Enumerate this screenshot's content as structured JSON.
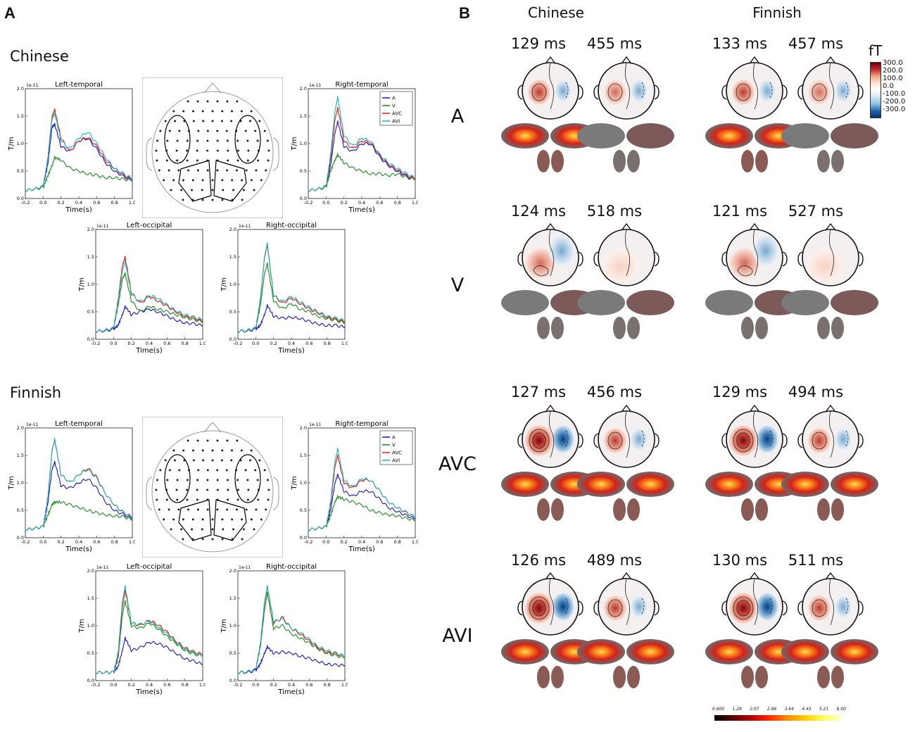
{
  "panel_a": {
    "letter": "A",
    "groups": [
      {
        "title": "Chinese"
      },
      {
        "title": "Finnish"
      }
    ]
  },
  "panel_b": {
    "letter": "B",
    "columns": [
      "Chinese",
      "Finnish"
    ],
    "conditions": [
      "A",
      "V",
      "AVC",
      "AVI"
    ],
    "latencies": [
      [
        "129 ms",
        "455 ms",
        "133 ms",
        "457 ms"
      ],
      [
        "124 ms",
        "518 ms",
        "121 ms",
        "527 ms"
      ],
      [
        "127 ms",
        "456 ms",
        "129 ms",
        "494 ms"
      ],
      [
        "126 ms",
        "489 ms",
        "130 ms",
        "511 ms"
      ]
    ],
    "colorbar": {
      "unit": "fT",
      "labels": [
        "300.0",
        "200.0",
        "100.0",
        "0.0",
        "-100.0",
        "-200.0",
        "-300.0"
      ],
      "bottom_labels": [
        "0.600",
        "1.29",
        "2.07",
        "2.86",
        "3.64",
        "4.43",
        "5.21",
        "6.00"
      ]
    }
  },
  "chart_data": [
    {
      "type": "line",
      "group": "Chinese",
      "title": "Left-temporal",
      "xlabel": "Time(s)",
      "ylabel": "T/m",
      "scale_label": "1e-11",
      "xlim": [
        -0.2,
        1.0
      ],
      "ylim": [
        0.0,
        2.0
      ],
      "xticks": [
        "-0.2",
        "0.0",
        "0.2",
        "0.4",
        "0.6",
        "0.8",
        "1.0"
      ],
      "yticks": [
        "0.0",
        "0.5",
        "1.0",
        "1.5",
        "2.0"
      ],
      "x": [
        -0.2,
        -0.1,
        0.0,
        0.05,
        0.1,
        0.13,
        0.2,
        0.3,
        0.4,
        0.5,
        0.6,
        0.7,
        0.8,
        0.9,
        1.0
      ],
      "series": [
        {
          "name": "A",
          "color": "#1515c8",
          "values": [
            0.15,
            0.17,
            0.22,
            0.6,
            1.3,
            1.35,
            0.95,
            0.85,
            1.05,
            1.1,
            0.9,
            0.65,
            0.5,
            0.4,
            0.33
          ]
        },
        {
          "name": "V",
          "color": "#1a8a1a",
          "values": [
            0.15,
            0.17,
            0.2,
            0.4,
            0.6,
            0.75,
            0.7,
            0.55,
            0.5,
            0.45,
            0.42,
            0.38,
            0.38,
            0.35,
            0.33
          ]
        },
        {
          "name": "AVC",
          "color": "#e01a1a",
          "values": [
            0.15,
            0.17,
            0.22,
            0.7,
            1.5,
            1.62,
            1.1,
            0.85,
            1.05,
            1.12,
            0.95,
            0.7,
            0.55,
            0.42,
            0.35
          ]
        },
        {
          "name": "AVI",
          "color": "#1ab8b8",
          "values": [
            0.15,
            0.17,
            0.22,
            0.7,
            1.45,
            1.55,
            1.05,
            0.9,
            1.1,
            1.22,
            1.0,
            0.75,
            0.55,
            0.45,
            0.36
          ]
        }
      ]
    },
    {
      "type": "line",
      "group": "Chinese",
      "title": "Right-temporal",
      "xlabel": "Time(s)",
      "ylabel": "T/m",
      "scale_label": "1e-11",
      "legend": "top-right",
      "xlim": [
        -0.2,
        1.0
      ],
      "ylim": [
        0.0,
        2.0
      ],
      "xticks": [
        "-0.2",
        "0.0",
        "0.2",
        "0.4",
        "0.6",
        "0.8",
        "1.0"
      ],
      "yticks": [
        "0.0",
        "0.5",
        "1.0",
        "1.5",
        "2.0"
      ],
      "x": [
        -0.2,
        -0.1,
        0.0,
        0.05,
        0.1,
        0.13,
        0.2,
        0.3,
        0.4,
        0.5,
        0.6,
        0.7,
        0.8,
        0.9,
        1.0
      ],
      "series": [
        {
          "name": "A",
          "color": "#1515c8",
          "values": [
            0.15,
            0.17,
            0.22,
            0.6,
            1.2,
            1.4,
            0.95,
            0.85,
            1.0,
            1.0,
            0.75,
            0.6,
            0.5,
            0.4,
            0.35
          ]
        },
        {
          "name": "V",
          "color": "#1a8a1a",
          "values": [
            0.15,
            0.17,
            0.2,
            0.5,
            0.7,
            0.8,
            0.65,
            0.55,
            0.5,
            0.45,
            0.45,
            0.42,
            0.45,
            0.38,
            0.35
          ]
        },
        {
          "name": "AVC",
          "color": "#e01a1a",
          "values": [
            0.15,
            0.17,
            0.22,
            0.7,
            1.45,
            1.65,
            1.05,
            0.9,
            1.05,
            1.02,
            0.78,
            0.62,
            0.52,
            0.42,
            0.36
          ]
        },
        {
          "name": "AVI",
          "color": "#1ab8b8",
          "values": [
            0.15,
            0.17,
            0.22,
            0.8,
            1.6,
            1.85,
            1.15,
            0.95,
            1.1,
            1.05,
            0.8,
            0.65,
            0.55,
            0.45,
            0.38
          ]
        }
      ]
    },
    {
      "type": "line",
      "group": "Chinese",
      "title": "Left-occipital",
      "xlabel": "Time(s)",
      "ylabel": "T/m",
      "scale_label": "1e-11",
      "xlim": [
        -0.2,
        1.0
      ],
      "ylim": [
        0.0,
        2.0
      ],
      "xticks": [
        "-0.2",
        "0.0",
        "0.2",
        "0.4",
        "0.6",
        "0.8",
        "1.0"
      ],
      "yticks": [
        "0.0",
        "0.5",
        "1.0",
        "1.5",
        "2.0"
      ],
      "x": [
        -0.2,
        -0.1,
        0.0,
        0.05,
        0.1,
        0.13,
        0.2,
        0.3,
        0.4,
        0.5,
        0.6,
        0.7,
        0.8,
        0.9,
        1.0
      ],
      "series": [
        {
          "name": "A",
          "color": "#1515c8",
          "values": [
            0.15,
            0.15,
            0.18,
            0.25,
            0.45,
            0.6,
            0.45,
            0.5,
            0.55,
            0.5,
            0.42,
            0.35,
            0.3,
            0.28,
            0.25
          ]
        },
        {
          "name": "V",
          "color": "#1a8a1a",
          "values": [
            0.15,
            0.16,
            0.2,
            0.6,
            1.1,
            1.2,
            0.7,
            0.5,
            0.6,
            0.55,
            0.5,
            0.45,
            0.4,
            0.35,
            0.32
          ]
        },
        {
          "name": "AVC",
          "color": "#e01a1a",
          "values": [
            0.15,
            0.16,
            0.2,
            0.7,
            1.35,
            1.5,
            0.85,
            0.65,
            0.78,
            0.7,
            0.6,
            0.5,
            0.42,
            0.38,
            0.33
          ]
        },
        {
          "name": "AVI",
          "color": "#1ab8b8",
          "values": [
            0.15,
            0.16,
            0.2,
            0.65,
            1.25,
            1.42,
            0.82,
            0.68,
            0.8,
            0.75,
            0.62,
            0.52,
            0.45,
            0.4,
            0.36
          ]
        }
      ]
    },
    {
      "type": "line",
      "group": "Chinese",
      "title": "Right-occipital",
      "xlabel": "Time(s)",
      "ylabel": "T/m",
      "scale_label": "1e-11",
      "xlim": [
        -0.2,
        1.0
      ],
      "ylim": [
        0.0,
        2.0
      ],
      "xticks": [
        "-0.2",
        "0.0",
        "0.2",
        "0.4",
        "0.6",
        "0.8",
        "1.0"
      ],
      "yticks": [
        "0.0",
        "0.5",
        "1.0",
        "1.5",
        "2.0"
      ],
      "x": [
        -0.2,
        -0.1,
        0.0,
        0.05,
        0.1,
        0.13,
        0.2,
        0.3,
        0.4,
        0.5,
        0.6,
        0.7,
        0.8,
        0.9,
        1.0
      ],
      "series": [
        {
          "name": "A",
          "color": "#1515c8",
          "values": [
            0.15,
            0.15,
            0.18,
            0.25,
            0.45,
            0.62,
            0.42,
            0.38,
            0.4,
            0.38,
            0.32,
            0.28,
            0.25,
            0.25,
            0.22
          ]
        },
        {
          "name": "V",
          "color": "#1a8a1a",
          "values": [
            0.15,
            0.16,
            0.2,
            0.6,
            1.2,
            1.38,
            0.7,
            0.55,
            0.65,
            0.55,
            0.5,
            0.42,
            0.38,
            0.34,
            0.3
          ]
        },
        {
          "name": "AVC",
          "color": "#e01a1a",
          "values": [
            0.15,
            0.16,
            0.2,
            0.7,
            1.5,
            1.72,
            0.8,
            0.65,
            0.75,
            0.65,
            0.55,
            0.48,
            0.4,
            0.36,
            0.32
          ]
        },
        {
          "name": "AVI",
          "color": "#1ab8b8",
          "values": [
            0.15,
            0.16,
            0.2,
            0.72,
            1.52,
            1.75,
            0.8,
            0.68,
            0.78,
            0.68,
            0.58,
            0.5,
            0.42,
            0.38,
            0.34
          ]
        }
      ]
    },
    {
      "type": "line",
      "group": "Finnish",
      "title": "Left-temporal",
      "xlabel": "Time(s)",
      "ylabel": "T/m",
      "scale_label": "1e-11",
      "xlim": [
        -0.2,
        1.0
      ],
      "ylim": [
        0.0,
        2.0
      ],
      "xticks": [
        "-0.2",
        "0.0",
        "0.2",
        "0.4",
        "0.6",
        "0.8",
        "1.0"
      ],
      "yticks": [
        "0.0",
        "0.5",
        "1.0",
        "1.5",
        "2.0"
      ],
      "x": [
        -0.2,
        -0.1,
        0.0,
        0.05,
        0.1,
        0.13,
        0.2,
        0.3,
        0.4,
        0.5,
        0.6,
        0.7,
        0.8,
        0.9,
        1.0
      ],
      "series": [
        {
          "name": "A",
          "color": "#1515c8",
          "values": [
            0.15,
            0.17,
            0.2,
            0.6,
            1.25,
            1.38,
            0.95,
            0.9,
            1.0,
            1.08,
            0.9,
            0.65,
            0.5,
            0.42,
            0.35
          ]
        },
        {
          "name": "V",
          "color": "#1a8a1a",
          "values": [
            0.15,
            0.17,
            0.2,
            0.4,
            0.6,
            0.65,
            0.65,
            0.6,
            0.55,
            0.5,
            0.45,
            0.42,
            0.4,
            0.38,
            0.33
          ]
        },
        {
          "name": "AVC",
          "color": "#e01a1a",
          "values": [
            0.15,
            0.17,
            0.2,
            0.7,
            1.6,
            1.78,
            1.15,
            1.0,
            1.15,
            1.27,
            1.1,
            0.8,
            0.6,
            0.45,
            0.38
          ]
        },
        {
          "name": "AVI",
          "color": "#1ab8b8",
          "values": [
            0.15,
            0.17,
            0.2,
            0.7,
            1.58,
            1.8,
            1.15,
            1.0,
            1.15,
            1.25,
            1.08,
            0.8,
            0.6,
            0.46,
            0.36
          ]
        }
      ]
    },
    {
      "type": "line",
      "group": "Finnish",
      "title": "Right-temporal",
      "xlabel": "Time(s)",
      "ylabel": "T/m",
      "scale_label": "1e-11",
      "legend": "top-right",
      "xlim": [
        -0.2,
        1.0
      ],
      "ylim": [
        0.0,
        2.0
      ],
      "xticks": [
        "-0.2",
        "0.0",
        "0.2",
        "0.4",
        "0.6",
        "0.8",
        "1.0"
      ],
      "yticks": [
        "0.0",
        "0.5",
        "1.0",
        "1.5",
        "2.0"
      ],
      "x": [
        -0.2,
        -0.1,
        0.0,
        0.05,
        0.1,
        0.13,
        0.2,
        0.3,
        0.4,
        0.5,
        0.6,
        0.7,
        0.8,
        0.9,
        1.0
      ],
      "series": [
        {
          "name": "A",
          "color": "#1515c8",
          "values": [
            0.15,
            0.17,
            0.2,
            0.5,
            1.0,
            1.15,
            0.85,
            0.75,
            0.85,
            0.85,
            0.7,
            0.55,
            0.48,
            0.4,
            0.35
          ]
        },
        {
          "name": "V",
          "color": "#1a8a1a",
          "values": [
            0.15,
            0.17,
            0.2,
            0.4,
            0.65,
            0.75,
            0.7,
            0.65,
            0.6,
            0.5,
            0.45,
            0.42,
            0.4,
            0.35,
            0.32
          ]
        },
        {
          "name": "AVC",
          "color": "#e01a1a",
          "values": [
            0.15,
            0.17,
            0.2,
            0.6,
            1.3,
            1.5,
            1.0,
            0.9,
            1.05,
            1.05,
            0.85,
            0.65,
            0.55,
            0.45,
            0.38
          ]
        },
        {
          "name": "AVI",
          "color": "#1ab8b8",
          "values": [
            0.15,
            0.17,
            0.2,
            0.65,
            1.4,
            1.62,
            1.05,
            0.92,
            1.08,
            1.05,
            0.85,
            0.65,
            0.55,
            0.46,
            0.38
          ]
        }
      ]
    },
    {
      "type": "line",
      "group": "Finnish",
      "title": "Left-occipital",
      "xlabel": "Time(s)",
      "ylabel": "T/m",
      "scale_label": "1e-11",
      "xlim": [
        -0.2,
        1.0
      ],
      "ylim": [
        0.0,
        2.0
      ],
      "xticks": [
        "-0.2",
        "0.0",
        "0.2",
        "0.4",
        "0.6",
        "0.8",
        "1.0"
      ],
      "yticks": [
        "0.0",
        "0.5",
        "1.0",
        "1.5",
        "2.0"
      ],
      "x": [
        -0.2,
        -0.1,
        0.0,
        0.05,
        0.1,
        0.13,
        0.2,
        0.3,
        0.4,
        0.5,
        0.6,
        0.7,
        0.8,
        0.9,
        1.0
      ],
      "series": [
        {
          "name": "A",
          "color": "#1515c8",
          "values": [
            0.15,
            0.15,
            0.15,
            0.25,
            0.55,
            0.78,
            0.55,
            0.6,
            0.7,
            0.68,
            0.6,
            0.5,
            0.4,
            0.35,
            0.3
          ]
        },
        {
          "name": "V",
          "color": "#1a8a1a",
          "values": [
            0.15,
            0.15,
            0.15,
            0.4,
            1.2,
            1.45,
            1.0,
            0.95,
            1.05,
            0.95,
            0.8,
            0.68,
            0.55,
            0.48,
            0.45
          ]
        },
        {
          "name": "AVC",
          "color": "#e01a1a",
          "values": [
            0.15,
            0.15,
            0.15,
            0.45,
            1.35,
            1.65,
            1.05,
            1.0,
            1.1,
            1.02,
            0.88,
            0.72,
            0.6,
            0.52,
            0.48
          ]
        },
        {
          "name": "AVI",
          "color": "#1ab8b8",
          "values": [
            0.15,
            0.15,
            0.15,
            0.5,
            1.45,
            1.72,
            1.05,
            1.02,
            1.08,
            0.98,
            0.85,
            0.7,
            0.58,
            0.5,
            0.45
          ]
        }
      ]
    },
    {
      "type": "line",
      "group": "Finnish",
      "title": "Right-occipital",
      "xlabel": "Time(s)",
      "ylabel": "T/m",
      "scale_label": "1e-11",
      "xlim": [
        -0.2,
        1.0
      ],
      "ylim": [
        0.0,
        2.0
      ],
      "xticks": [
        "-0.2",
        "0.0",
        "0.2",
        "0.4",
        "0.6",
        "0.8",
        "1.0"
      ],
      "yticks": [
        "0.0",
        "0.5",
        "1.0",
        "1.5",
        "2.0"
      ],
      "x": [
        -0.2,
        -0.1,
        0.0,
        0.05,
        0.1,
        0.13,
        0.2,
        0.3,
        0.4,
        0.5,
        0.6,
        0.7,
        0.8,
        0.9,
        1.0
      ],
      "series": [
        {
          "name": "A",
          "color": "#1515c8",
          "values": [
            0.15,
            0.15,
            0.18,
            0.3,
            0.5,
            0.62,
            0.5,
            0.52,
            0.5,
            0.45,
            0.4,
            0.35,
            0.3,
            0.28,
            0.28
          ]
        },
        {
          "name": "V",
          "color": "#1a8a1a",
          "values": [
            0.15,
            0.16,
            0.2,
            0.6,
            1.3,
            1.6,
            0.95,
            1.0,
            0.85,
            0.78,
            0.68,
            0.58,
            0.5,
            0.45,
            0.42
          ]
        },
        {
          "name": "AVC",
          "color": "#e01a1a",
          "values": [
            0.15,
            0.16,
            0.2,
            0.65,
            1.42,
            1.72,
            1.05,
            1.15,
            0.95,
            0.85,
            0.72,
            0.6,
            0.52,
            0.48,
            0.45
          ]
        },
        {
          "name": "AVI",
          "color": "#1ab8b8",
          "values": [
            0.15,
            0.16,
            0.2,
            0.65,
            1.45,
            1.72,
            1.08,
            1.12,
            0.95,
            0.88,
            0.75,
            0.62,
            0.55,
            0.5,
            0.45
          ]
        }
      ]
    }
  ]
}
